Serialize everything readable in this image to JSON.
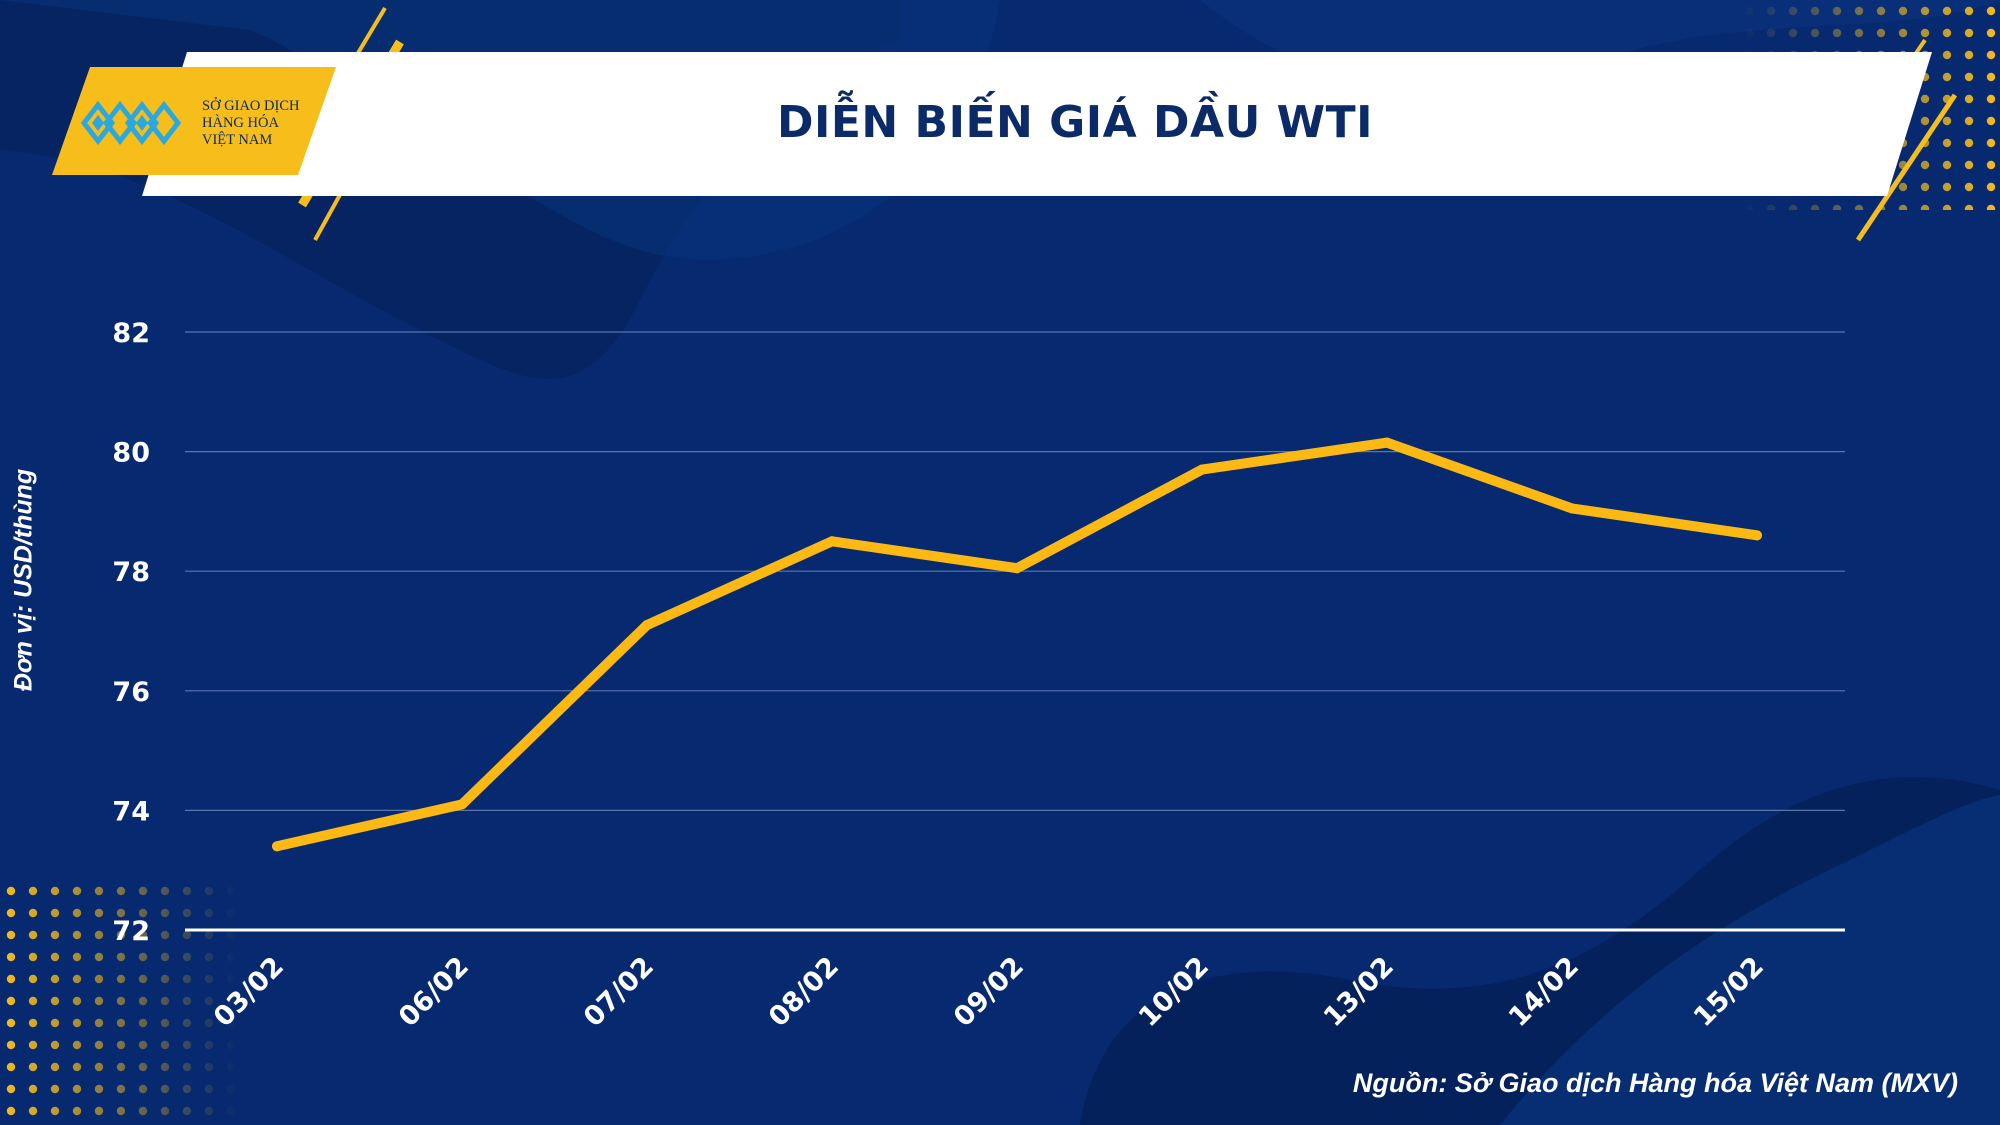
{
  "header": {
    "title": "DIỄN BIẾN GIÁ DẦU WTI",
    "logo_lines": [
      "SỞ GIAO DỊCH",
      "HÀNG HÓA",
      "VIỆT NAM"
    ]
  },
  "colors": {
    "background": "#06296f",
    "accent": "#f7be1b",
    "line": "#fdb913",
    "title": "#0b2a68",
    "text": "#ffffff"
  },
  "chart_data": {
    "type": "line",
    "title": "DIỄN BIẾN GIÁ DẦU WTI",
    "categories": [
      "03/02",
      "06/02",
      "07/02",
      "08/02",
      "09/02",
      "10/02",
      "13/02",
      "14/02",
      "15/02"
    ],
    "series": [
      {
        "values": [
          73.4,
          74.1,
          77.1,
          78.5,
          78.05,
          79.7,
          80.15,
          79.05,
          78.6
        ]
      }
    ],
    "ylabel": "Đơn vị: USD/thùng",
    "ylim": [
      72,
      82
    ],
    "yticks": [
      72,
      74,
      76,
      78,
      80,
      82
    ],
    "grid": true,
    "legend": "none"
  },
  "source": "Nguồn: Sở Giao dịch Hàng hóa Việt Nam (MXV)"
}
